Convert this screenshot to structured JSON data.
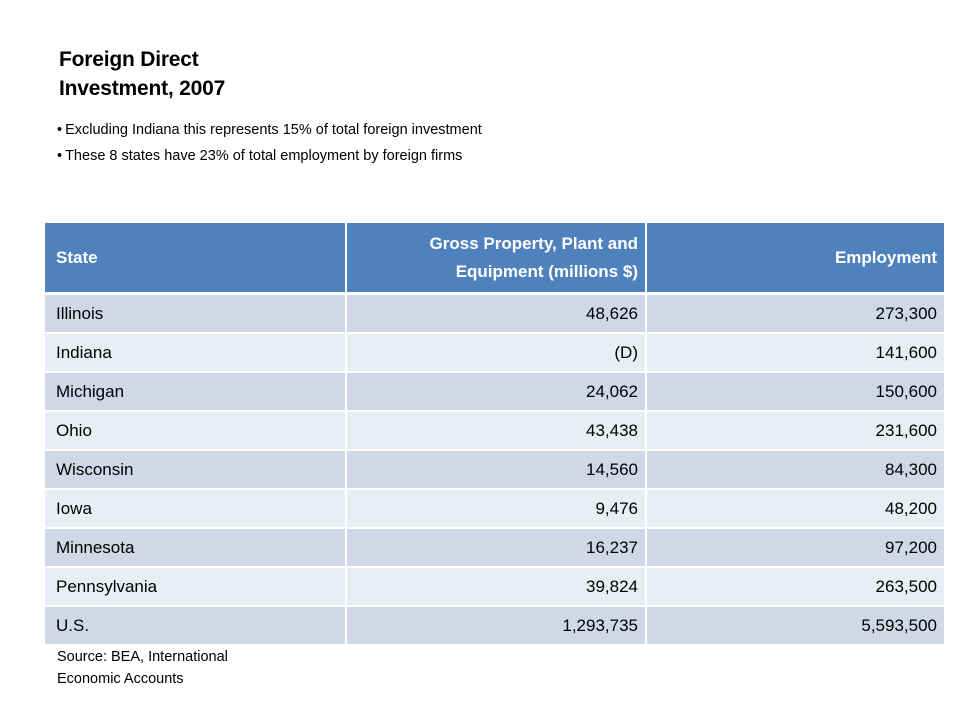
{
  "title": {
    "line1": "Foreign Direct",
    "line2": "Investment, 2007"
  },
  "bullets": [
    "Excluding Indiana this represents 15% of total foreign investment",
    "These 8 states have 23% of total employment by foreign firms"
  ],
  "table": {
    "headers": [
      "State",
      "Gross Property, Plant and Equipment  (millions $)",
      "Employment"
    ],
    "rows": [
      [
        "Illinois",
        "48,626",
        "273,300"
      ],
      [
        "Indiana",
        "(D)",
        "141,600"
      ],
      [
        "Michigan",
        "24,062",
        "150,600"
      ],
      [
        "Ohio",
        "43,438",
        "231,600"
      ],
      [
        "Wisconsin",
        "14,560",
        "84,300"
      ],
      [
        "Iowa",
        "9,476",
        "48,200"
      ],
      [
        "Minnesota",
        "16,237",
        "97,200"
      ],
      [
        "Pennsylvania",
        "39,824",
        "263,500"
      ],
      [
        "U.S.",
        "1,293,735",
        "5,593,500"
      ]
    ]
  },
  "source": {
    "line1": "Source:  BEA, International",
    "line2": "Economic Accounts"
  },
  "colors": {
    "header": "#4f81bd",
    "row_odd": "#d0d8e8",
    "row_even": "#e9edf4"
  }
}
